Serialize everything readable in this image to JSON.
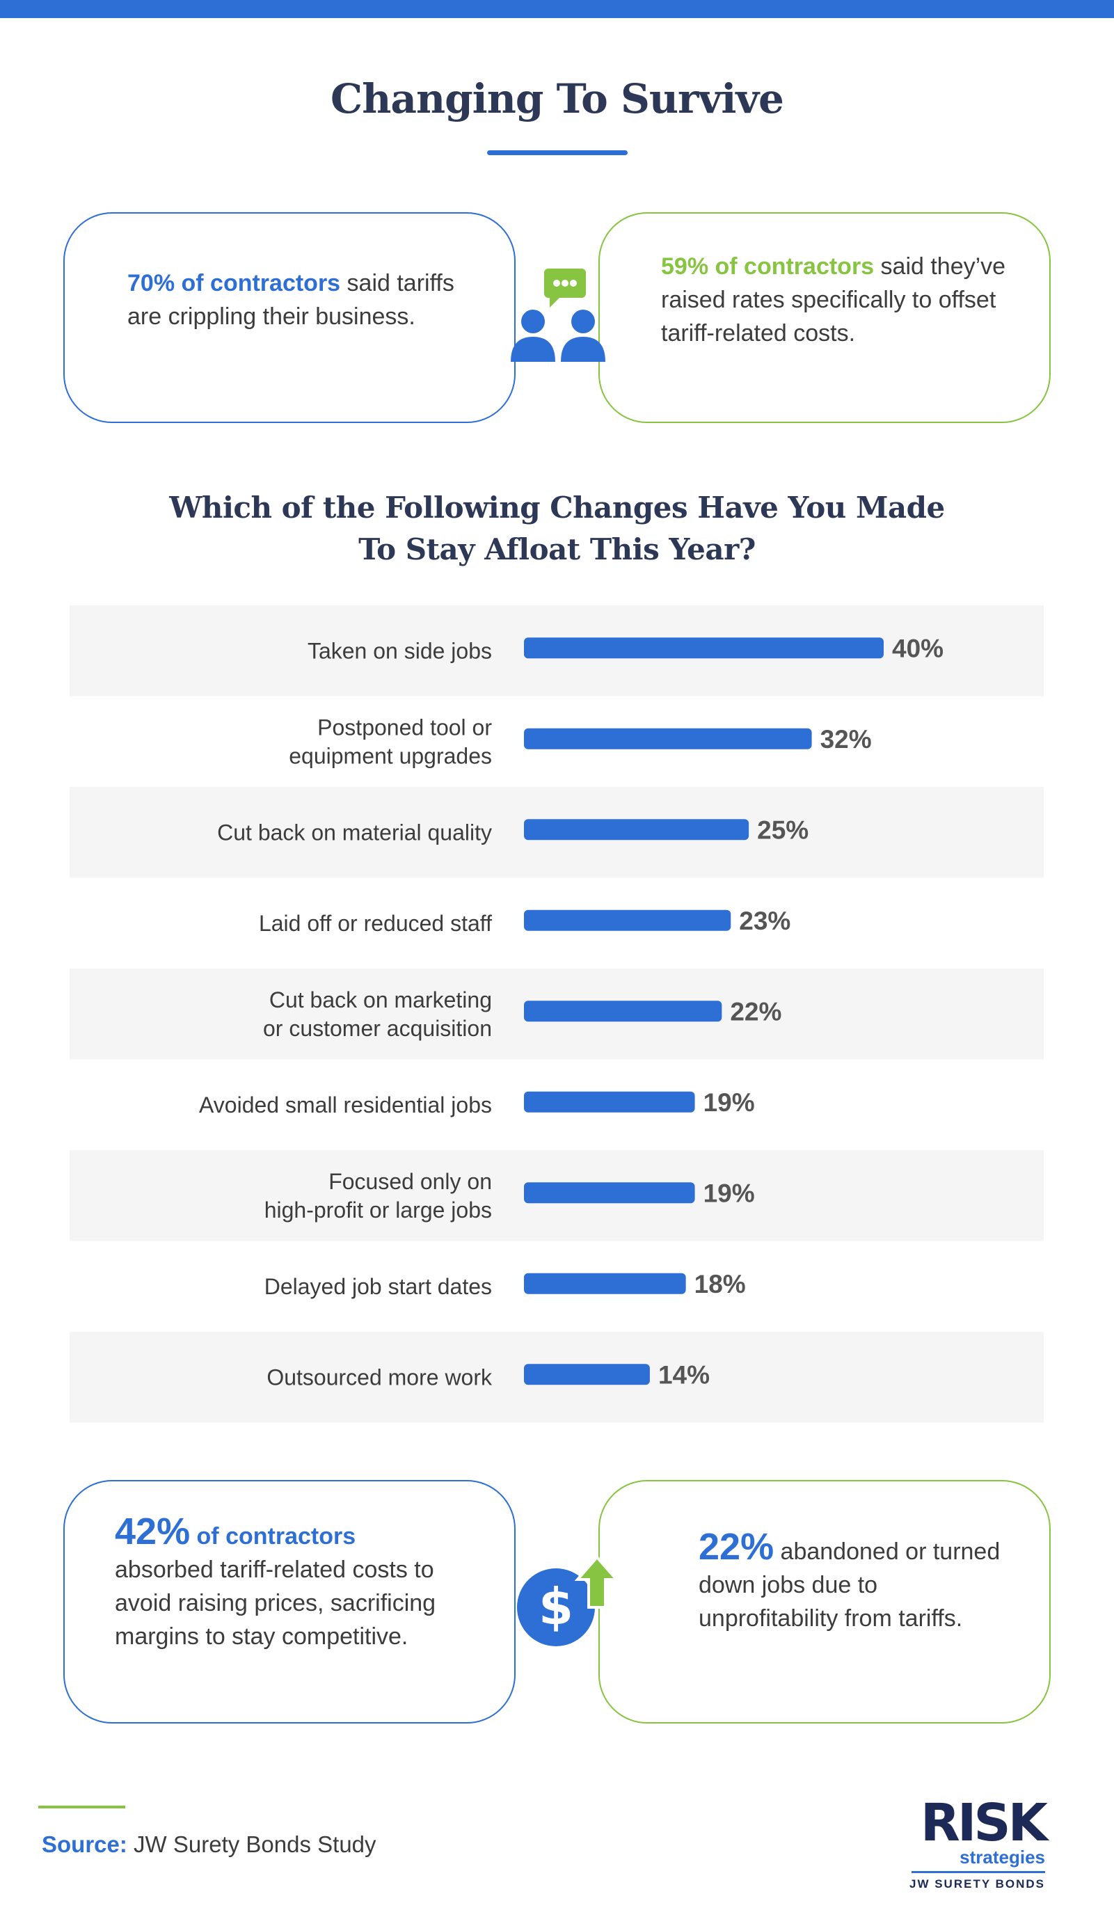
{
  "header": {
    "title": "Changing To Survive"
  },
  "stat_cards": {
    "top_left": {
      "highlight": "70% of contractors",
      "text": " said tariffs are crippling their business."
    },
    "top_right": {
      "highlight": "59% of contractors",
      "text": " said they’ve raised rates specifically to offset tariff-related costs."
    },
    "bottom_left": {
      "big": "42%",
      "highlight": " of contractors",
      "text": "absorbed tariff-related costs to avoid raising prices, sacrificing margins to stay competitive."
    },
    "bottom_right": {
      "big": "22%",
      "text": " abandoned or turned down jobs due to unprofitability from tariffs."
    }
  },
  "chart_data": {
    "type": "bar",
    "orientation": "horizontal",
    "title_lines": [
      "Which of the Following Changes Have You Made",
      "To Stay Afloat This Year?"
    ],
    "categories": [
      [
        "Taken on side jobs"
      ],
      [
        "Postponed tool or",
        "equipment upgrades"
      ],
      [
        "Cut back on material quality"
      ],
      [
        "Laid off or reduced staff"
      ],
      [
        "Cut back on marketing",
        "or customer acquisition"
      ],
      [
        "Avoided small residential jobs"
      ],
      [
        "Focused only on",
        "high-profit or large jobs"
      ],
      [
        "Delayed job start dates"
      ],
      [
        "Outsourced more work"
      ]
    ],
    "values": [
      40,
      32,
      25,
      23,
      22,
      19,
      19,
      18,
      14
    ],
    "value_labels": [
      "40%",
      "32%",
      "25%",
      "23%",
      "22%",
      "19%",
      "19%",
      "18%",
      "14%"
    ],
    "xlim": [
      0,
      40
    ],
    "bar_color": "#2e6fd6",
    "row_shade_color": "#f5f5f5"
  },
  "footer": {
    "source_label": "Source:",
    "source_text": " JW Surety Bonds Study"
  },
  "logo": {
    "name": "RISK",
    "tagline": "strategies",
    "subbrand": "JW SURETY BONDS"
  },
  "colors": {
    "accent_blue": "#2e6fd6",
    "accent_green": "#86c441",
    "navy": "#2d3857"
  }
}
